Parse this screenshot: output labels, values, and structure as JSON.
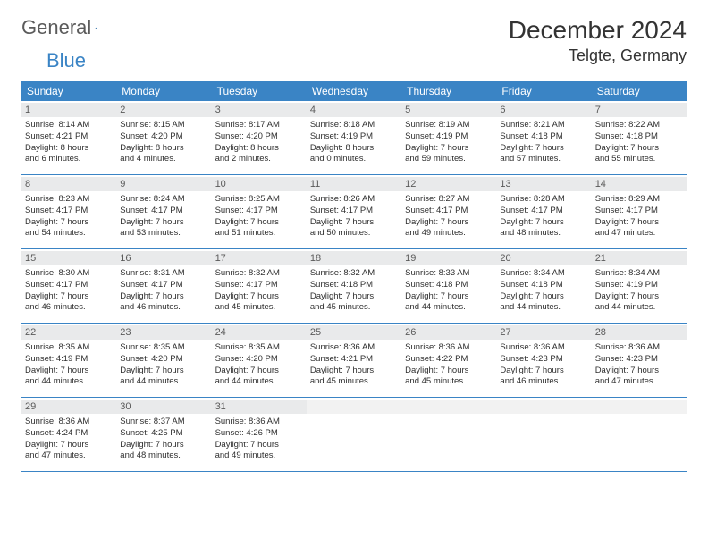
{
  "logo": {
    "word1": "General",
    "word2": "Blue",
    "word1_color": "#5b5b5b",
    "word2_color": "#3a84c5",
    "tri_color": "#2f6fa8"
  },
  "title": "December 2024",
  "location": "Telgte, Germany",
  "colors": {
    "header_bg": "#3a84c5",
    "header_text": "#ffffff",
    "daynum_bg": "#e9eaeb",
    "row_border": "#3a84c5",
    "text": "#2e2e2e"
  },
  "fonts": {
    "title_size": 28,
    "location_size": 18,
    "weekday_size": 12,
    "daynum_size": 11,
    "body_size": 9.5
  },
  "weekdays": [
    "Sunday",
    "Monday",
    "Tuesday",
    "Wednesday",
    "Thursday",
    "Friday",
    "Saturday"
  ],
  "weeks": [
    [
      {
        "n": "1",
        "sr": "Sunrise: 8:14 AM",
        "ss": "Sunset: 4:21 PM",
        "d1": "Daylight: 8 hours",
        "d2": "and 6 minutes."
      },
      {
        "n": "2",
        "sr": "Sunrise: 8:15 AM",
        "ss": "Sunset: 4:20 PM",
        "d1": "Daylight: 8 hours",
        "d2": "and 4 minutes."
      },
      {
        "n": "3",
        "sr": "Sunrise: 8:17 AM",
        "ss": "Sunset: 4:20 PM",
        "d1": "Daylight: 8 hours",
        "d2": "and 2 minutes."
      },
      {
        "n": "4",
        "sr": "Sunrise: 8:18 AM",
        "ss": "Sunset: 4:19 PM",
        "d1": "Daylight: 8 hours",
        "d2": "and 0 minutes."
      },
      {
        "n": "5",
        "sr": "Sunrise: 8:19 AM",
        "ss": "Sunset: 4:19 PM",
        "d1": "Daylight: 7 hours",
        "d2": "and 59 minutes."
      },
      {
        "n": "6",
        "sr": "Sunrise: 8:21 AM",
        "ss": "Sunset: 4:18 PM",
        "d1": "Daylight: 7 hours",
        "d2": "and 57 minutes."
      },
      {
        "n": "7",
        "sr": "Sunrise: 8:22 AM",
        "ss": "Sunset: 4:18 PM",
        "d1": "Daylight: 7 hours",
        "d2": "and 55 minutes."
      }
    ],
    [
      {
        "n": "8",
        "sr": "Sunrise: 8:23 AM",
        "ss": "Sunset: 4:17 PM",
        "d1": "Daylight: 7 hours",
        "d2": "and 54 minutes."
      },
      {
        "n": "9",
        "sr": "Sunrise: 8:24 AM",
        "ss": "Sunset: 4:17 PM",
        "d1": "Daylight: 7 hours",
        "d2": "and 53 minutes."
      },
      {
        "n": "10",
        "sr": "Sunrise: 8:25 AM",
        "ss": "Sunset: 4:17 PM",
        "d1": "Daylight: 7 hours",
        "d2": "and 51 minutes."
      },
      {
        "n": "11",
        "sr": "Sunrise: 8:26 AM",
        "ss": "Sunset: 4:17 PM",
        "d1": "Daylight: 7 hours",
        "d2": "and 50 minutes."
      },
      {
        "n": "12",
        "sr": "Sunrise: 8:27 AM",
        "ss": "Sunset: 4:17 PM",
        "d1": "Daylight: 7 hours",
        "d2": "and 49 minutes."
      },
      {
        "n": "13",
        "sr": "Sunrise: 8:28 AM",
        "ss": "Sunset: 4:17 PM",
        "d1": "Daylight: 7 hours",
        "d2": "and 48 minutes."
      },
      {
        "n": "14",
        "sr": "Sunrise: 8:29 AM",
        "ss": "Sunset: 4:17 PM",
        "d1": "Daylight: 7 hours",
        "d2": "and 47 minutes."
      }
    ],
    [
      {
        "n": "15",
        "sr": "Sunrise: 8:30 AM",
        "ss": "Sunset: 4:17 PM",
        "d1": "Daylight: 7 hours",
        "d2": "and 46 minutes."
      },
      {
        "n": "16",
        "sr": "Sunrise: 8:31 AM",
        "ss": "Sunset: 4:17 PM",
        "d1": "Daylight: 7 hours",
        "d2": "and 46 minutes."
      },
      {
        "n": "17",
        "sr": "Sunrise: 8:32 AM",
        "ss": "Sunset: 4:17 PM",
        "d1": "Daylight: 7 hours",
        "d2": "and 45 minutes."
      },
      {
        "n": "18",
        "sr": "Sunrise: 8:32 AM",
        "ss": "Sunset: 4:18 PM",
        "d1": "Daylight: 7 hours",
        "d2": "and 45 minutes."
      },
      {
        "n": "19",
        "sr": "Sunrise: 8:33 AM",
        "ss": "Sunset: 4:18 PM",
        "d1": "Daylight: 7 hours",
        "d2": "and 44 minutes."
      },
      {
        "n": "20",
        "sr": "Sunrise: 8:34 AM",
        "ss": "Sunset: 4:18 PM",
        "d1": "Daylight: 7 hours",
        "d2": "and 44 minutes."
      },
      {
        "n": "21",
        "sr": "Sunrise: 8:34 AM",
        "ss": "Sunset: 4:19 PM",
        "d1": "Daylight: 7 hours",
        "d2": "and 44 minutes."
      }
    ],
    [
      {
        "n": "22",
        "sr": "Sunrise: 8:35 AM",
        "ss": "Sunset: 4:19 PM",
        "d1": "Daylight: 7 hours",
        "d2": "and 44 minutes."
      },
      {
        "n": "23",
        "sr": "Sunrise: 8:35 AM",
        "ss": "Sunset: 4:20 PM",
        "d1": "Daylight: 7 hours",
        "d2": "and 44 minutes."
      },
      {
        "n": "24",
        "sr": "Sunrise: 8:35 AM",
        "ss": "Sunset: 4:20 PM",
        "d1": "Daylight: 7 hours",
        "d2": "and 44 minutes."
      },
      {
        "n": "25",
        "sr": "Sunrise: 8:36 AM",
        "ss": "Sunset: 4:21 PM",
        "d1": "Daylight: 7 hours",
        "d2": "and 45 minutes."
      },
      {
        "n": "26",
        "sr": "Sunrise: 8:36 AM",
        "ss": "Sunset: 4:22 PM",
        "d1": "Daylight: 7 hours",
        "d2": "and 45 minutes."
      },
      {
        "n": "27",
        "sr": "Sunrise: 8:36 AM",
        "ss": "Sunset: 4:23 PM",
        "d1": "Daylight: 7 hours",
        "d2": "and 46 minutes."
      },
      {
        "n": "28",
        "sr": "Sunrise: 8:36 AM",
        "ss": "Sunset: 4:23 PM",
        "d1": "Daylight: 7 hours",
        "d2": "and 47 minutes."
      }
    ],
    [
      {
        "n": "29",
        "sr": "Sunrise: 8:36 AM",
        "ss": "Sunset: 4:24 PM",
        "d1": "Daylight: 7 hours",
        "d2": "and 47 minutes."
      },
      {
        "n": "30",
        "sr": "Sunrise: 8:37 AM",
        "ss": "Sunset: 4:25 PM",
        "d1": "Daylight: 7 hours",
        "d2": "and 48 minutes."
      },
      {
        "n": "31",
        "sr": "Sunrise: 8:36 AM",
        "ss": "Sunset: 4:26 PM",
        "d1": "Daylight: 7 hours",
        "d2": "and 49 minutes."
      },
      {
        "empty": true
      },
      {
        "empty": true
      },
      {
        "empty": true
      },
      {
        "empty": true
      }
    ]
  ]
}
